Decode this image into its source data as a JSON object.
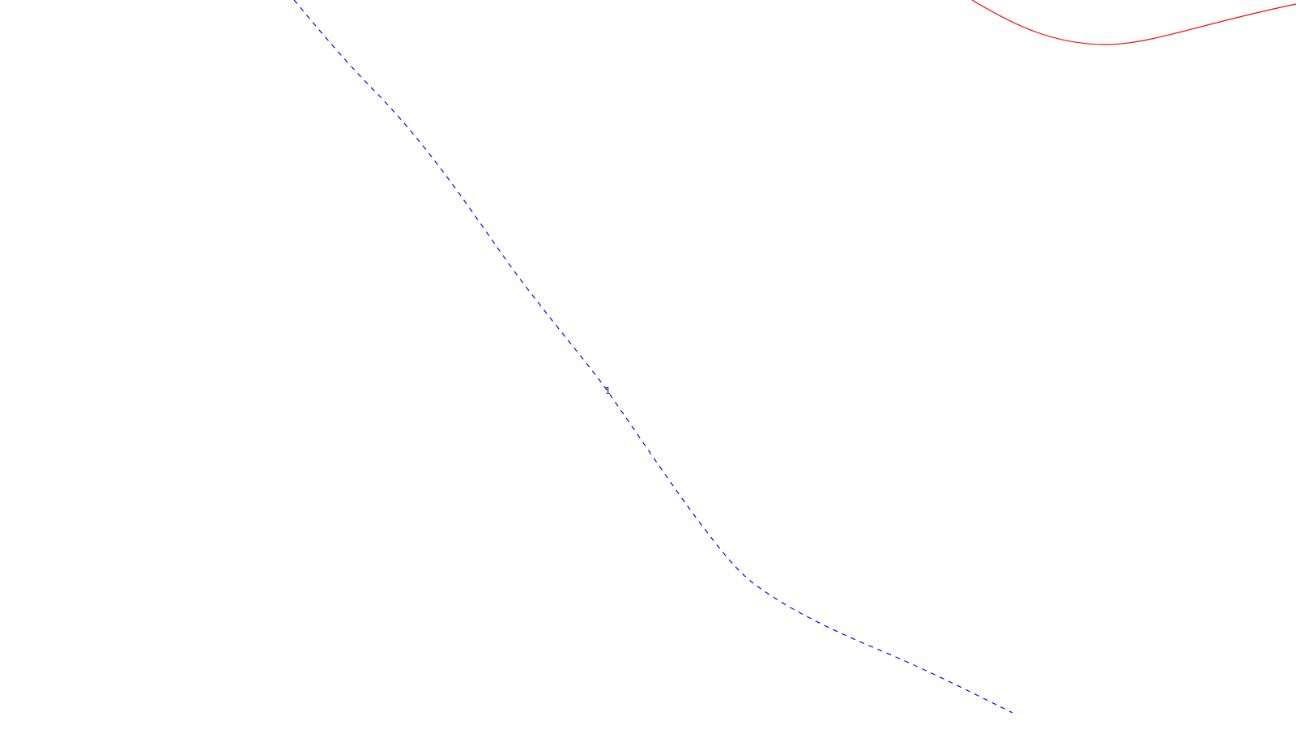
{
  "map": {
    "background_color": "#ffffff",
    "features": [
      {
        "id": "red-line",
        "kind": "line",
        "style": "solid",
        "color": "#ff0000"
      },
      {
        "id": "blue-dashed-line",
        "kind": "line",
        "style": "dashed",
        "color": "#0000ff",
        "label": "1",
        "label_color": "#00008b"
      }
    ]
  }
}
